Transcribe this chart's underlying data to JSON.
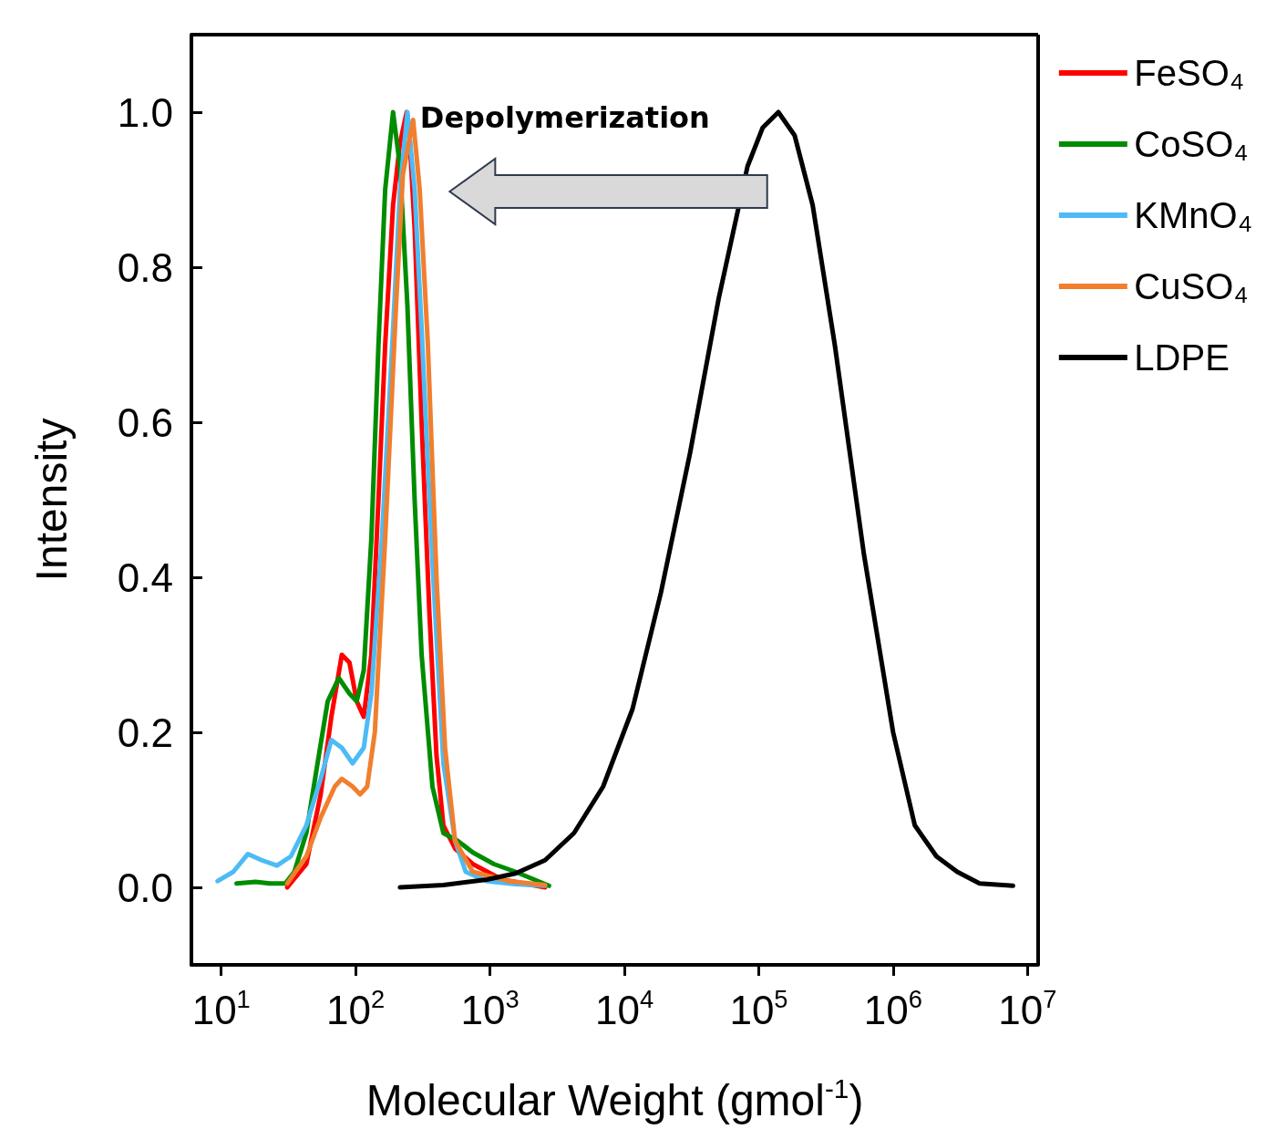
{
  "chart_data": {
    "type": "line",
    "xlabel": "Molecular Weight (gmol$^{-1}$)",
    "ylabel": "Intensity",
    "annotations": [
      "Depolymerization"
    ],
    "log": "x",
    "legend": "right",
    "grid": false,
    "marker": "none",
    "line_style": "solid",
    "xlim": [
      6,
      12000000
    ],
    "xticks": [
      {
        "value": 10,
        "label": "10$^{1}$"
      },
      {
        "value": 100,
        "label": "10$^{2}$"
      },
      {
        "value": 1000,
        "label": "10$^{3}$"
      },
      {
        "value": 10000,
        "label": "10$^{4}$"
      },
      {
        "value": 100000,
        "label": "10$^{5}$"
      },
      {
        "value": 1000000,
        "label": "10$^{6}$"
      },
      {
        "value": 10000000,
        "label": "10$^{7}$"
      }
    ],
    "ylim": [
      -0.1,
      1.1
    ],
    "yticks": [
      {
        "value": 0,
        "label": "0.0"
      },
      {
        "value": 0.2,
        "label": "0.2"
      },
      {
        "value": 0.4,
        "label": "0.4"
      },
      {
        "value": 0.6,
        "label": "0.6"
      },
      {
        "value": 0.8,
        "label": "0.8"
      },
      {
        "value": 1,
        "label": "1.0"
      }
    ],
    "series": [
      {
        "name": "FeSO₄",
        "color": "#ff0000",
        "x": [
          31,
          43,
          55,
          66,
          79,
          90,
          102,
          115,
          131,
          148,
          166,
          190,
          214,
          240,
          250,
          275,
          310,
          355,
          400,
          450,
          550,
          745,
          1230,
          2570
        ],
        "values": [
          0,
          0.03,
          0.12,
          0.22,
          0.3,
          0.29,
          0.24,
          0.22,
          0.3,
          0.5,
          0.7,
          0.88,
          0.96,
          1.0,
          0.98,
          0.85,
          0.6,
          0.35,
          0.17,
          0.08,
          0.05,
          0.03,
          0.01,
          0
        ]
      },
      {
        "name": "CoSO₄",
        "color": "#008c00",
        "x": [
          13,
          18,
          23,
          30,
          35,
          43,
          51,
          62,
          75,
          90,
          102,
          115,
          131,
          148,
          166,
          190,
          214,
          243,
          275,
          310,
          373,
          450,
          575,
          745,
          1070,
          1550,
          2750
        ],
        "values": [
          0.005,
          0.007,
          0.005,
          0.005,
          0.02,
          0.07,
          0.15,
          0.24,
          0.27,
          0.25,
          0.24,
          0.28,
          0.45,
          0.7,
          0.9,
          1.0,
          0.93,
          0.75,
          0.5,
          0.3,
          0.13,
          0.07,
          0.06,
          0.045,
          0.03,
          0.02,
          0.002
        ]
      },
      {
        "name": "KMnO₄",
        "color": "#4dbbf5",
        "x": [
          9.4,
          12.3,
          15.8,
          20,
          26,
          33,
          43,
          55,
          66,
          79,
          95,
          115,
          131,
          157,
          190,
          214,
          243,
          275,
          310,
          373,
          450,
          550,
          660,
          950,
          1550,
          2570
        ],
        "values": [
          0.008,
          0.02,
          0.043,
          0.035,
          0.028,
          0.04,
          0.08,
          0.14,
          0.19,
          0.18,
          0.16,
          0.18,
          0.25,
          0.45,
          0.72,
          0.9,
          1.0,
          0.9,
          0.72,
          0.42,
          0.16,
          0.06,
          0.02,
          0.008,
          0.004,
          0.002
        ]
      },
      {
        "name": "CuSO₄",
        "color": "#f07f2e",
        "x": [
          31,
          43,
          55,
          70,
          79,
          95,
          108,
          122,
          139,
          166,
          200,
          225,
          268,
          300,
          345,
          400,
          463,
          550,
          745,
          1380,
          2570
        ],
        "values": [
          0.005,
          0.04,
          0.09,
          0.13,
          0.14,
          0.13,
          0.12,
          0.13,
          0.2,
          0.45,
          0.75,
          0.92,
          0.99,
          0.9,
          0.7,
          0.4,
          0.18,
          0.06,
          0.02,
          0.008,
          0.003
        ]
      },
      {
        "name": "LDPE",
        "color": "#000000",
        "x": [
          214,
          450,
          950,
          1550,
          2570,
          4220,
          6950,
          11500,
          18700,
          30800,
          50400,
          82500,
          107000,
          140000,
          185000,
          252000,
          368000,
          606000,
          1000000,
          1450000,
          2100000,
          3000000,
          4400000,
          7800000
        ],
        "values": [
          0,
          0.003,
          0.01,
          0.018,
          0.035,
          0.07,
          0.13,
          0.23,
          0.38,
          0.56,
          0.76,
          0.93,
          0.98,
          1.0,
          0.97,
          0.88,
          0.7,
          0.43,
          0.2,
          0.08,
          0.04,
          0.02,
          0.005,
          0.002
        ]
      }
    ]
  }
}
